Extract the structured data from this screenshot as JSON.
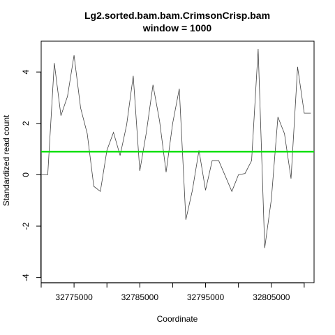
{
  "chart_data": {
    "type": "line",
    "title": "Lg2.sorted.bam.bam.CrimsonCrisp.bam",
    "subtitle": "window = 1000",
    "xlabel": "Coordinate",
    "ylabel": "Standardized read count",
    "xlim": [
      32770000,
      32811500
    ],
    "ylim": [
      -4.2,
      5.2
    ],
    "x_ticks": [
      32770000,
      32775000,
      32780000,
      32785000,
      32790000,
      32795000,
      32800000,
      32805000,
      32810000
    ],
    "x_tick_labels": [
      "32775000",
      "32785000",
      "32795000",
      "32805000"
    ],
    "x_tick_label_values": [
      32775000,
      32785000,
      32795000,
      32805000
    ],
    "y_ticks": [
      -4,
      -2,
      0,
      2,
      4
    ],
    "y_tick_labels": [
      "-4",
      "-2",
      "0",
      "2",
      "4"
    ],
    "grid": false,
    "series": [
      {
        "color": "#404040",
        "x": [
          32770000,
          32771000,
          32772000,
          32773000,
          32774000,
          32775000,
          32776000,
          32777000,
          32778000,
          32779000,
          32780000,
          32781000,
          32782000,
          32783000,
          32784000,
          32785000,
          32786000,
          32787000,
          32788000,
          32789000,
          32790000,
          32791000,
          32792000,
          32793000,
          32794000,
          32795000,
          32796000,
          32797000,
          32798000,
          32799000,
          32800000,
          32801000,
          32802000,
          32803000,
          32804000,
          32805000,
          32806000,
          32807000,
          32808000,
          32809000,
          32810000,
          32811000
        ],
        "values": [
          0.0,
          0.0,
          4.35,
          2.3,
          3.05,
          4.65,
          2.6,
          1.6,
          -0.45,
          -0.65,
          0.95,
          1.65,
          0.75,
          1.95,
          3.85,
          0.15,
          1.65,
          3.5,
          2.1,
          0.1,
          2.0,
          3.35,
          -1.75,
          -0.6,
          0.95,
          -0.6,
          0.55,
          0.55,
          -0.05,
          -0.65,
          0.0,
          0.05,
          0.55,
          4.9,
          -2.85,
          -0.95,
          2.25,
          1.6,
          -0.15,
          4.2,
          2.4,
          2.4
        ]
      }
    ],
    "reference_line": {
      "y": 0.9,
      "color": "#00e000"
    }
  }
}
